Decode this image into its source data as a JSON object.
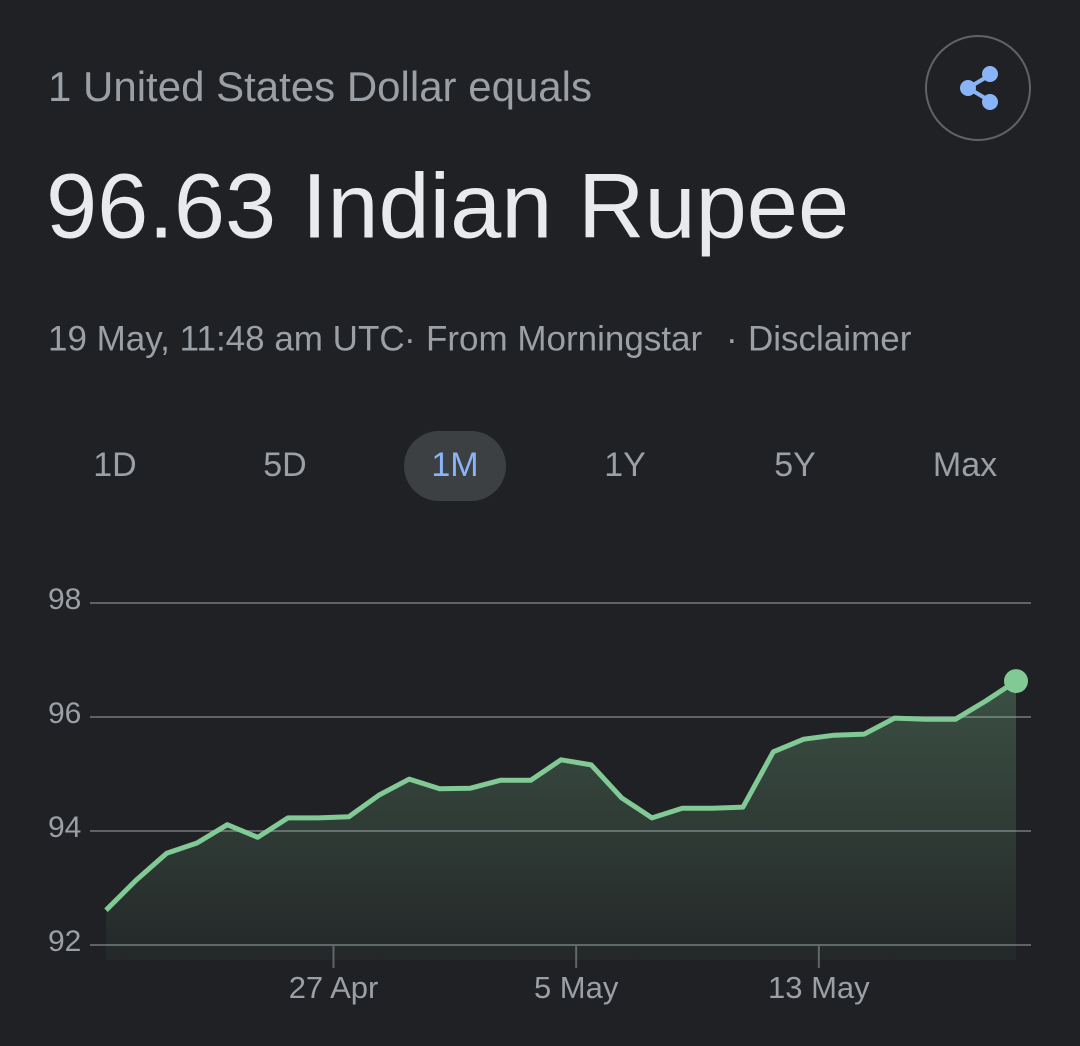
{
  "header": {
    "caption": "1 United States Dollar equals",
    "result": "96.63 Indian Rupee",
    "timestamp": "19 May, 11:48 am UTC",
    "source": "From Morningstar",
    "disclaimer": "Disclaimer"
  },
  "tabs": {
    "items": [
      "1D",
      "5D",
      "1M",
      "1Y",
      "5Y",
      "Max"
    ],
    "active": 2
  },
  "chart_data": {
    "type": "line",
    "color": "#81c995",
    "grid": true,
    "values": [
      92.61,
      93.14,
      93.61,
      93.79,
      94.11,
      93.89,
      94.23,
      94.23,
      94.25,
      94.63,
      94.91,
      94.74,
      94.75,
      94.89,
      94.89,
      95.25,
      95.16,
      94.58,
      94.23,
      94.4,
      94.4,
      94.42,
      95.39,
      95.61,
      95.68,
      95.7,
      95.98,
      95.96,
      95.96,
      96.28,
      96.63
    ],
    "xlim": [
      0,
      30
    ],
    "xticks": [
      {
        "value": 7.5,
        "label": "27 Apr"
      },
      {
        "value": 15.5,
        "label": "5 May"
      },
      {
        "value": 23.5,
        "label": "13 May"
      }
    ],
    "ylim": [
      92,
      98
    ],
    "yticks": [
      92,
      94,
      96,
      98
    ]
  }
}
